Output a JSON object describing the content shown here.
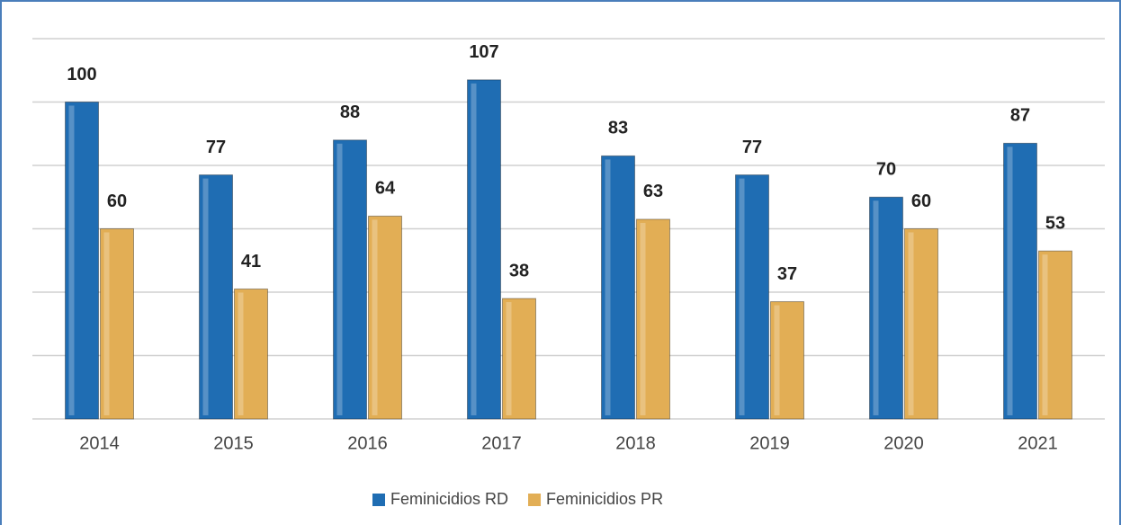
{
  "chart_data": {
    "type": "bar",
    "categories": [
      "2014",
      "2015",
      "2016",
      "2017",
      "2018",
      "2019",
      "2020",
      "2021"
    ],
    "series": [
      {
        "name": "Feminicidios RD",
        "color": "#1f6db3",
        "values": [
          100,
          77,
          88,
          107,
          83,
          77,
          70,
          87
        ]
      },
      {
        "name": "Feminicidios PR",
        "color": "#e2ae55",
        "values": [
          60,
          41,
          64,
          38,
          63,
          37,
          60,
          53
        ]
      }
    ],
    "ylim": [
      0,
      120
    ],
    "yticks": [
      0,
      20,
      40,
      60,
      80,
      100,
      120
    ],
    "grid": true,
    "legend": "bottom"
  }
}
